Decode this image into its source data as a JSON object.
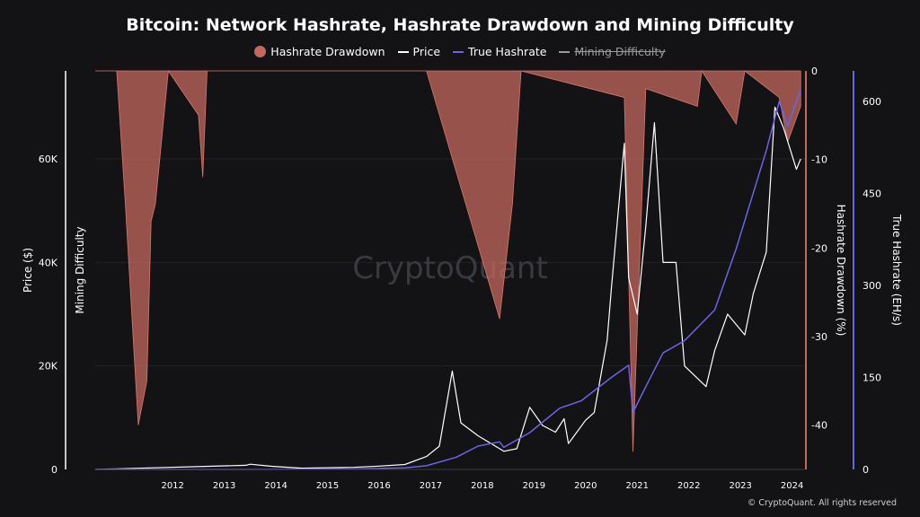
{
  "title": "Bitcoin: Network Hashrate, Hashrate Drawdown and Mining Difficulty",
  "legend": [
    {
      "label": "Hashrate Drawdown",
      "color": "#c4685f",
      "kind": "dot",
      "enabled": true
    },
    {
      "label": "Price",
      "color": "#ffffff",
      "kind": "line",
      "enabled": true
    },
    {
      "label": "True Hashrate",
      "color": "#6d63e8",
      "kind": "line",
      "enabled": true
    },
    {
      "label": "Mining Difficulty",
      "color": "#9a9a9a",
      "kind": "line",
      "enabled": false
    }
  ],
  "watermark": "CryptoQuant",
  "footer": "© CryptoQuant. All rights reserved",
  "chart_data": {
    "type": "line",
    "x_ticks": [
      "2012",
      "2013",
      "2014",
      "2015",
      "2016",
      "2017",
      "2018",
      "2019",
      "2020",
      "2021",
      "2022",
      "2023",
      "2024"
    ],
    "xlim": [
      "2011-01",
      "2024-10"
    ],
    "axes": {
      "price": {
        "label": "Price ($)",
        "ticks": [
          "0",
          "20K",
          "40K",
          "60K"
        ],
        "ylim": [
          0,
          77000
        ]
      },
      "difficulty": {
        "label": "Mining Difficulty"
      },
      "drawdown": {
        "label": "Hashrate Drawdown (%)",
        "ticks": [
          "0",
          "-10",
          "-20",
          "-30",
          "-40"
        ],
        "ylim": [
          -45,
          0
        ]
      },
      "hashrate": {
        "label": "True Hashrate (EH/s)",
        "ticks": [
          "0",
          "150",
          "300",
          "450",
          "600"
        ],
        "ylim": [
          0,
          650
        ]
      }
    },
    "series": [
      {
        "name": "Price",
        "color": "#ffffff",
        "points": [
          [
            "2011-01",
            0
          ],
          [
            "2013-12",
            800
          ],
          [
            "2014-01",
            1000
          ],
          [
            "2014-06",
            600
          ],
          [
            "2015-01",
            250
          ],
          [
            "2016-01",
            400
          ],
          [
            "2016-07",
            650
          ],
          [
            "2017-01",
            950
          ],
          [
            "2017-06",
            2500
          ],
          [
            "2017-09",
            4500
          ],
          [
            "2017-12",
            19000
          ],
          [
            "2018-02",
            9000
          ],
          [
            "2018-06",
            6500
          ],
          [
            "2018-11",
            4000
          ],
          [
            "2018-12",
            3500
          ],
          [
            "2019-03",
            4000
          ],
          [
            "2019-06",
            12000
          ],
          [
            "2019-09",
            8500
          ],
          [
            "2019-12",
            7200
          ],
          [
            "2020-02",
            9800
          ],
          [
            "2020-03",
            5000
          ],
          [
            "2020-07",
            9500
          ],
          [
            "2020-09",
            11000
          ],
          [
            "2020-12",
            25000
          ],
          [
            "2021-01",
            35000
          ],
          [
            "2021-04",
            63000
          ],
          [
            "2021-05",
            37000
          ],
          [
            "2021-07",
            30000
          ],
          [
            "2021-09",
            47000
          ],
          [
            "2021-11",
            67000
          ],
          [
            "2022-01",
            40000
          ],
          [
            "2022-04",
            40000
          ],
          [
            "2022-06",
            20000
          ],
          [
            "2022-11",
            16000
          ],
          [
            "2023-01",
            23000
          ],
          [
            "2023-04",
            30000
          ],
          [
            "2023-08",
            26000
          ],
          [
            "2023-10",
            34000
          ],
          [
            "2024-01",
            42000
          ],
          [
            "2024-03",
            70000
          ],
          [
            "2024-05",
            66000
          ],
          [
            "2024-08",
            58000
          ],
          [
            "2024-09",
            60000
          ]
        ]
      },
      {
        "name": "True Hashrate",
        "color": "#6d63e8",
        "points": [
          [
            "2011-01",
            0
          ],
          [
            "2014-01",
            0.01
          ],
          [
            "2015-01",
            0.3
          ],
          [
            "2016-01",
            0.8
          ],
          [
            "2017-01",
            2.5
          ],
          [
            "2017-06",
            6
          ],
          [
            "2018-01",
            20
          ],
          [
            "2018-06",
            38
          ],
          [
            "2018-11",
            45
          ],
          [
            "2018-12",
            36
          ],
          [
            "2019-06",
            60
          ],
          [
            "2020-01",
            100
          ],
          [
            "2020-06",
            112
          ],
          [
            "2021-01",
            150
          ],
          [
            "2021-05",
            170
          ],
          [
            "2021-06",
            93
          ],
          [
            "2021-09",
            135
          ],
          [
            "2022-01",
            190
          ],
          [
            "2022-06",
            210
          ],
          [
            "2023-01",
            260
          ],
          [
            "2023-06",
            360
          ],
          [
            "2024-01",
            520
          ],
          [
            "2024-04",
            600
          ],
          [
            "2024-06",
            560
          ],
          [
            "2024-09",
            620
          ]
        ]
      },
      {
        "name": "Hashrate Drawdown",
        "color": "#c4685f",
        "points": [
          [
            "2011-01",
            0
          ],
          [
            "2011-06",
            0
          ],
          [
            "2011-08",
            -15
          ],
          [
            "2011-11",
            -40
          ],
          [
            "2012-01",
            -35
          ],
          [
            "2012-02",
            -17
          ],
          [
            "2012-03",
            -15
          ],
          [
            "2012-06",
            0
          ],
          [
            "2013-01",
            -5
          ],
          [
            "2013-02",
            -12
          ],
          [
            "2013-03",
            0
          ],
          [
            "2017-06",
            0
          ],
          [
            "2018-11",
            -28
          ],
          [
            "2019-02",
            -15
          ],
          [
            "2019-04",
            0
          ],
          [
            "2021-04",
            -3
          ],
          [
            "2021-06",
            -43
          ],
          [
            "2021-09",
            -2
          ],
          [
            "2022-09",
            -4
          ],
          [
            "2022-10",
            0
          ],
          [
            "2023-06",
            -6
          ],
          [
            "2023-08",
            0
          ],
          [
            "2024-04",
            -3
          ],
          [
            "2024-06",
            -8
          ],
          [
            "2024-09",
            -4
          ]
        ]
      }
    ]
  }
}
